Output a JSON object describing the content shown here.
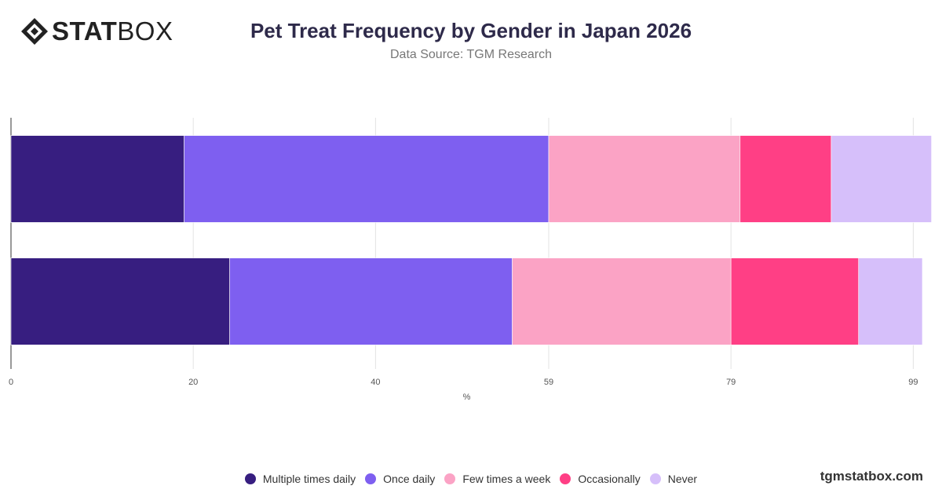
{
  "header": {
    "logo_text_bold": "STAT",
    "logo_text_light": "BOX",
    "title": "Pet Treat Frequency by Gender in Japan 2026",
    "subtitle": "Data Source: TGM Research"
  },
  "footer": {
    "brand": "tgmstatbox.com"
  },
  "chart_data": {
    "type": "bar",
    "orientation": "horizontal",
    "stacked": true,
    "title": "Pet Treat Frequency by Gender in Japan 2026",
    "subtitle": "Data Source: TGM Research",
    "xlabel": "%",
    "ylabel": "",
    "categories": [
      "",
      ""
    ],
    "xlim": [
      0,
      100
    ],
    "x_ticks": [
      0,
      20,
      40,
      59,
      79,
      99
    ],
    "grid": true,
    "legend_position": "bottom",
    "series": [
      {
        "name": "Multiple times daily",
        "color": "#371e80",
        "values": [
          19,
          24
        ]
      },
      {
        "name": "Once daily",
        "color": "#7e5ff0",
        "values": [
          40,
          31
        ]
      },
      {
        "name": "Few times a week",
        "color": "#fba3c5",
        "values": [
          21,
          24
        ]
      },
      {
        "name": "Occasionally",
        "color": "#ff3f85",
        "values": [
          10,
          14
        ]
      },
      {
        "name": "Never",
        "color": "#d6bffa",
        "values": [
          11,
          7
        ]
      }
    ]
  }
}
